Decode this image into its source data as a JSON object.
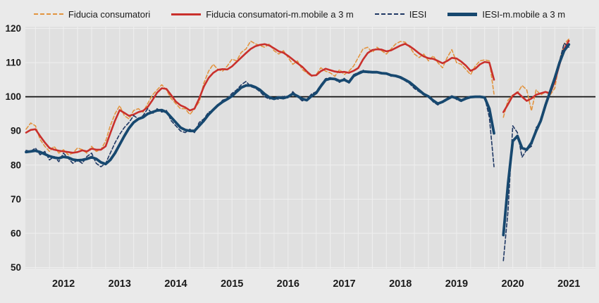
{
  "colors": {
    "page_background": "#eaeaea",
    "plot_background": "#e0e0e0",
    "gridline": "#efefef",
    "reference_line": "#111111",
    "axis_text": "#1a1a1a",
    "fiducia_raw": "#E2943F",
    "fiducia_ma": "#C9302C",
    "iesi_raw": "#1F3864",
    "iesi_ma": "#17486F"
  },
  "chart_data": {
    "type": "line",
    "title": "",
    "x_start": "2011-11",
    "x_frequency": "monthly",
    "x_year_labels": [
      2012,
      2013,
      2014,
      2015,
      2016,
      2017,
      2018,
      2019,
      2020,
      2021
    ],
    "y_ticks": [
      50,
      60,
      70,
      80,
      90,
      100,
      110,
      120
    ],
    "ylim": [
      50,
      120
    ],
    "grid": "on",
    "legend_position": "top",
    "reference_line": 100,
    "gap_month": "2020-04",
    "series": [
      {
        "name": "Fiducia consumatori",
        "color": "#E2943F",
        "dash": true,
        "width": 1.6,
        "values": [
          90.5,
          92.3,
          91.5,
          87.5,
          85.5,
          84,
          85.5,
          83.5,
          84.5,
          83,
          83.5,
          85,
          84.5,
          83.5,
          85.5,
          84,
          84.5,
          87,
          91.5,
          95,
          97.4,
          94.5,
          93.5,
          96,
          96.5,
          95.5,
          98,
          100.5,
          102,
          103.5,
          102,
          99.5,
          98,
          96.5,
          96.5,
          94.8,
          96.5,
          98.5,
          104,
          107.5,
          109.5,
          108,
          107.5,
          109,
          111,
          110.5,
          113,
          114,
          116.3,
          115.5,
          115,
          114.5,
          115.5,
          113.5,
          112.5,
          113.5,
          111.5,
          109.5,
          110.5,
          108,
          107,
          106,
          106.5,
          108.5,
          107.5,
          107,
          106,
          108,
          106.5,
          107.5,
          109,
          111.5,
          114,
          114.5,
          113,
          114.5,
          113.5,
          112.5,
          114,
          115.5,
          116.2,
          116,
          114.5,
          112.5,
          111.5,
          112.5,
          110.5,
          112,
          110,
          108.5,
          111.5,
          113.8,
          110,
          109.5,
          108,
          106.5,
          109,
          110.5,
          110.8,
          110.5,
          100.8,
          null,
          94,
          99,
          100.5,
          101,
          103.3,
          102,
          95.9,
          102,
          100.5,
          101.5,
          100.5,
          102.5,
          110.5,
          115.5,
          116.9
        ]
      },
      {
        "name": "Fiducia consumatori-m.mobile a 3 m",
        "color": "#C9302C",
        "dash": false,
        "width": 2.6,
        "values": [
          89.5,
          90.3,
          90.5,
          88.5,
          86.6,
          85,
          84.5,
          84.2,
          84,
          83.8,
          83.6,
          83.8,
          84.3,
          84,
          84.8,
          84.5,
          84.5,
          85.5,
          89.3,
          93,
          96.1,
          95.3,
          94.4,
          94.8,
          95.5,
          95.9,
          97,
          99,
          101.2,
          102.5,
          102.3,
          100.5,
          98.6,
          97.5,
          96.9,
          96,
          96.5,
          99.5,
          103,
          105.5,
          107,
          107.9,
          108.1,
          108,
          108.9,
          110.2,
          111.5,
          112.8,
          114,
          114.8,
          115.2,
          115.4,
          115,
          114.2,
          113.3,
          112.9,
          112,
          110.9,
          109.8,
          108.8,
          107.4,
          106.2,
          106.3,
          107.5,
          108.2,
          107.8,
          107.4,
          107.2,
          107.3,
          107,
          107.6,
          108.4,
          110.9,
          112.8,
          113.7,
          113.9,
          113.8,
          113.3,
          113.6,
          114.3,
          115,
          115.5,
          114.8,
          113.8,
          112.7,
          111.8,
          111.3,
          111.1,
          110.5,
          109.8,
          110.5,
          111.4,
          111.2,
          110.3,
          109.1,
          107.6,
          108.2,
          109.5,
          110.2,
          110,
          105,
          null,
          95.5,
          97.8,
          100.3,
          101.3,
          100,
          98.8,
          99.5,
          100.6,
          101,
          101.4,
          101,
          104.5,
          109.5,
          114,
          116.4
        ]
      },
      {
        "name": "IESI",
        "color": "#1F3864",
        "dash": true,
        "width": 1.6,
        "values": [
          84.3,
          84,
          85,
          83,
          84,
          81.5,
          82.5,
          81,
          83.5,
          82,
          80.5,
          81.5,
          80.5,
          82.5,
          83.5,
          80.5,
          79.5,
          80.5,
          83.5,
          86.5,
          89,
          91,
          92.5,
          94.5,
          93.5,
          94.5,
          96.5,
          95,
          96.5,
          95.5,
          96,
          93,
          91.5,
          90,
          89.5,
          90.5,
          89.5,
          92.5,
          93.5,
          95.5,
          96,
          97.5,
          99,
          99.5,
          101,
          102,
          103.5,
          104.5,
          103,
          102.5,
          101.5,
          100,
          99.3,
          99.8,
          99.2,
          100.3,
          99.6,
          101.5,
          100,
          98.8,
          99.2,
          100.8,
          101.5,
          103.5,
          105.3,
          105.6,
          105,
          104.2,
          105.4,
          104,
          106.5,
          107.1,
          107.8,
          107,
          107.4,
          107,
          106.7,
          107,
          106,
          106.3,
          105.4,
          104.7,
          103.8,
          102.4,
          101.5,
          100.5,
          100,
          98.5,
          97.6,
          98.7,
          99.5,
          100.3,
          99.2,
          98.6,
          99.8,
          100.1,
          99.8,
          100.2,
          100,
          94,
          79.5,
          null,
          52,
          66.5,
          91.5,
          89.5,
          82.3,
          84.5,
          85.5,
          91,
          92.5,
          98,
          102,
          106,
          110.5,
          115.7,
          114.5
        ]
      },
      {
        "name": "IESI-m.mobile a 3 m",
        "color": "#17486F",
        "dash": false,
        "width": 3.8,
        "values": [
          83.8,
          84,
          84.2,
          83.8,
          83.2,
          82.6,
          82.2,
          82,
          82.4,
          82.2,
          81.6,
          81.4,
          81.5,
          81.8,
          82.3,
          81.8,
          80.8,
          80.3,
          81.5,
          83.5,
          86,
          88.5,
          90.8,
          92.5,
          93.5,
          94,
          95,
          95.5,
          96,
          96.1,
          95.5,
          94,
          92.5,
          91,
          90.3,
          90,
          90,
          91.5,
          93,
          94.8,
          96.2,
          97.5,
          98.5,
          99.3,
          100.2,
          101.5,
          102.7,
          103.3,
          103.3,
          102.8,
          102,
          100.8,
          99.8,
          99.4,
          99.8,
          99.6,
          100,
          100.9,
          100.2,
          99.4,
          99,
          100.2,
          101.1,
          103.1,
          104.9,
          105.3,
          105.2,
          104.6,
          105,
          104.3,
          106.1,
          106.8,
          107.4,
          107.3,
          107.2,
          107.2,
          106.9,
          106.8,
          106.3,
          106.1,
          105.7,
          105,
          104.2,
          103.1,
          101.9,
          100.8,
          100.1,
          98.9,
          98,
          98.5,
          99.3,
          100,
          99.6,
          98.9,
          99.5,
          99.9,
          100,
          100,
          99.8,
          96.5,
          89.3,
          null,
          59.5,
          74.5,
          87,
          88.5,
          85,
          84.5,
          86.5,
          90,
          93,
          97.5,
          101.5,
          105.5,
          110,
          113.5,
          115.3
        ]
      }
    ]
  }
}
